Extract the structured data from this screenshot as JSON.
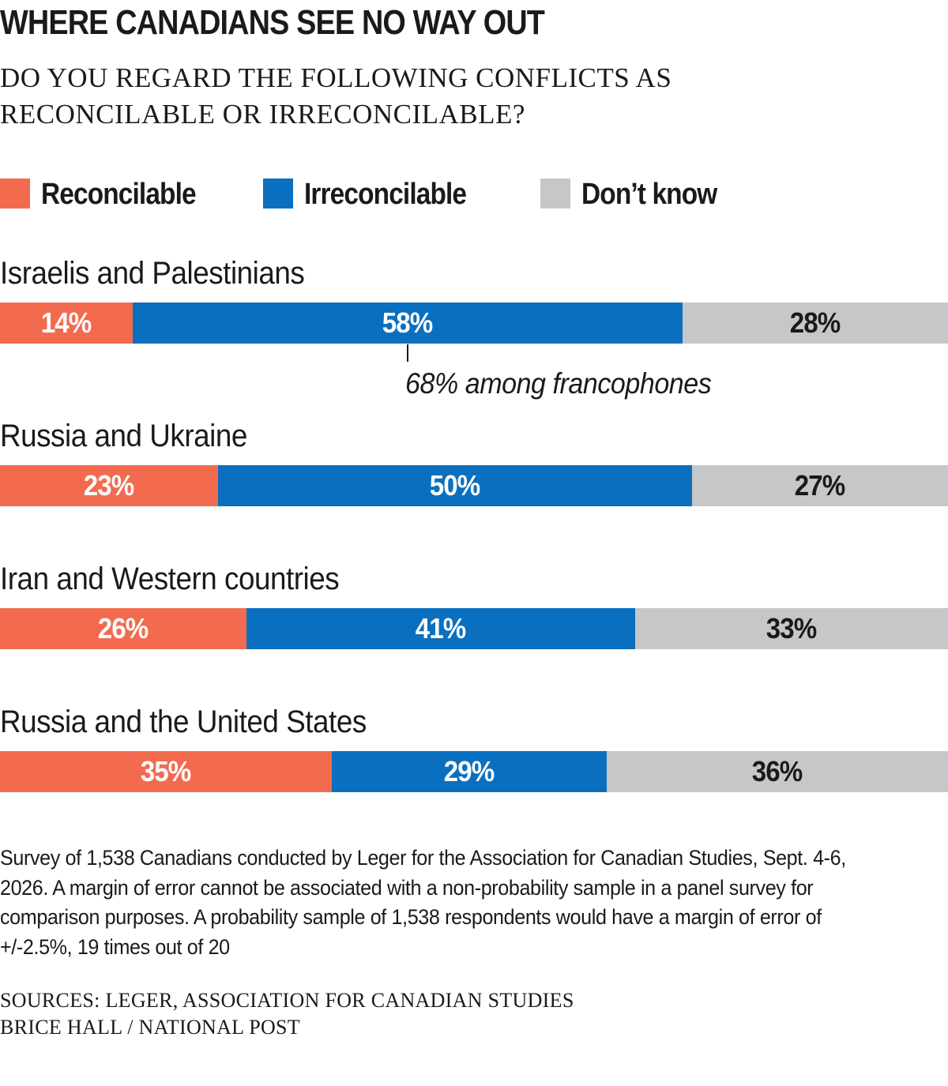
{
  "chart_data": {
    "type": "bar",
    "orientation": "horizontal",
    "stacked": true,
    "title": "WHERE CANADIANS SEE NO WAY OUT",
    "subtitle": "DO YOU REGARD THE FOLLOWING CONFLICTS AS RECONCILABLE OR IRRECONCILABLE?",
    "legend_placement": "top",
    "xlim": [
      0,
      100
    ],
    "grid": false,
    "categories": [
      "Israelis and Palestinians",
      "Russia and Ukraine",
      "Iran and Western countries",
      "Russia and the United States"
    ],
    "series": [
      {
        "name": "Reconcilable",
        "color": "#f26b4f",
        "label_color": "#ffffff",
        "values": [
          14,
          23,
          26,
          35
        ]
      },
      {
        "name": "Irreconcilable",
        "color": "#0a6fbf",
        "label_color": "#ffffff",
        "values": [
          58,
          50,
          41,
          29
        ]
      },
      {
        "name": "Don’t know",
        "color": "#c6c7c9",
        "label_color": "#1a1a1a",
        "values": [
          28,
          27,
          33,
          36
        ]
      }
    ],
    "data_labels": [
      [
        "14%",
        "58%",
        "28%"
      ],
      [
        "23%",
        "50%",
        "27%"
      ],
      [
        "26%",
        "41%",
        "33%"
      ],
      [
        "35%",
        "29%",
        "36%"
      ]
    ],
    "annotations": [
      {
        "category_index": 0,
        "series_index": 1,
        "text": "68% among francophones"
      }
    ]
  },
  "footer": {
    "note": "Survey of 1,538 Canadians conducted by Leger for the Association for Canadian Studies, Sept. 4-6, 2026. A margin of error cannot be associated with a non-probability sample in a panel survey for comparison purposes. A probability sample of 1,538 respondents would have a margin of error of +/-2.5%, 19 times out of 20",
    "sources": "SOURCES: LEGER, ASSOCIATION FOR CANADIAN STUDIES",
    "credit": "BRICE HALL / NATIONAL POST"
  }
}
